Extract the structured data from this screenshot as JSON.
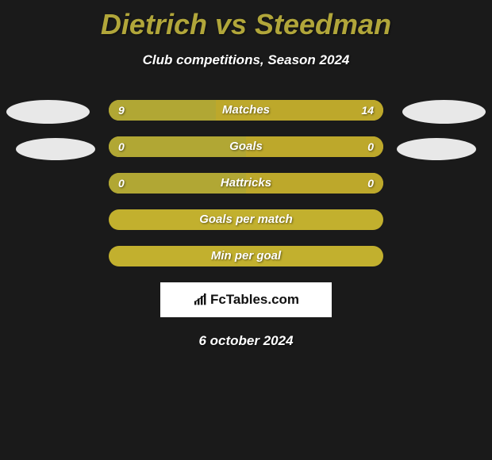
{
  "title": "Dietrich vs Steedman",
  "subtitle": "Club competitions, Season 2024",
  "date": "6 october 2024",
  "logo_text": "FcTables.com",
  "colors": {
    "left": "#b1a734",
    "right": "#bda82b",
    "empty": "#c2b02e",
    "title": "#b1a63a",
    "bg": "#1a1a1a"
  },
  "bars": [
    {
      "label": "Matches",
      "left": "9",
      "right": "14",
      "left_pct": 39,
      "right_pct": 61,
      "show_vals": true
    },
    {
      "label": "Goals",
      "left": "0",
      "right": "0",
      "left_pct": 50,
      "right_pct": 50,
      "show_vals": true
    },
    {
      "label": "Hattricks",
      "left": "0",
      "right": "0",
      "left_pct": 50,
      "right_pct": 50,
      "show_vals": true
    },
    {
      "label": "Goals per match",
      "left": "",
      "right": "",
      "left_pct": 0,
      "right_pct": 0,
      "show_vals": false
    },
    {
      "label": "Min per goal",
      "left": "",
      "right": "",
      "left_pct": 0,
      "right_pct": 0,
      "show_vals": false
    }
  ]
}
